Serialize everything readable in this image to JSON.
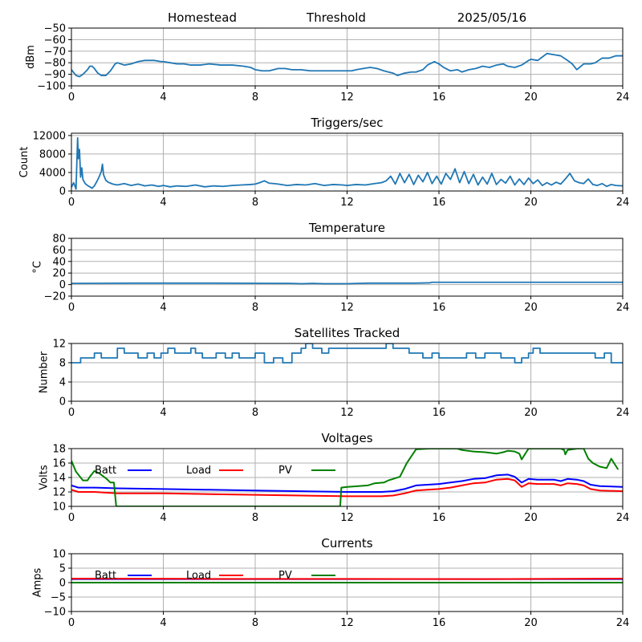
{
  "header": {
    "station": "Homestead",
    "mode": "Threshold",
    "date": "2025/05/16"
  },
  "colors": {
    "blue": "#1f77b4",
    "batt": "#0000ff",
    "load": "#ff0000",
    "pv": "#008000",
    "grid": "#b0b0b0"
  },
  "chart_data": [
    {
      "type": "line",
      "id": "signal",
      "title": "",
      "xlabel": "",
      "ylabel": "dBm",
      "xlim": [
        0,
        24
      ],
      "ylim": [
        -100,
        -50
      ],
      "xticks": [
        0,
        4,
        8,
        12,
        16,
        20,
        24
      ],
      "yticks": [
        -100,
        -90,
        -80,
        -70,
        -60,
        -50
      ],
      "grid": true,
      "series": [
        {
          "color": "#1f77b4",
          "x": [
            0,
            0.2,
            0.35,
            0.5,
            0.7,
            0.8,
            0.9,
            1.0,
            1.15,
            1.3,
            1.5,
            1.7,
            1.8,
            1.9,
            2.0,
            2.3,
            2.6,
            2.9,
            3.2,
            3.6,
            3.9,
            4.0,
            4.3,
            4.6,
            4.9,
            5.2,
            5.6,
            6.0,
            6.5,
            7.0,
            7.5,
            7.8,
            8.0,
            8.3,
            8.6,
            8.8,
            9.0,
            9.3,
            9.6,
            10.0,
            10.4,
            10.8,
            11.2,
            11.6,
            12.0,
            12.2,
            12.4,
            12.7,
            13.0,
            13.3,
            13.6,
            13.8,
            14.0,
            14.2,
            14.5,
            14.8,
            15.0,
            15.3,
            15.5,
            15.8,
            16.0,
            16.2,
            16.5,
            16.8,
            17.0,
            17.3,
            17.6,
            17.9,
            18.2,
            18.5,
            18.8,
            19.0,
            19.3,
            19.6,
            19.9,
            20.0,
            20.3,
            20.5,
            20.7,
            21.0,
            21.3,
            21.6,
            21.8,
            22.0,
            22.3,
            22.6,
            22.8,
            23.1,
            23.4,
            23.7,
            24.0
          ],
          "y": [
            -86,
            -91,
            -92,
            -90,
            -86,
            -83,
            -83,
            -85,
            -89,
            -91,
            -91,
            -87,
            -84,
            -81,
            -80,
            -82,
            -81,
            -79,
            -78,
            -78,
            -79,
            -79,
            -80,
            -81,
            -81,
            -82,
            -82,
            -81,
            -82,
            -82,
            -83,
            -84,
            -86,
            -87,
            -87,
            -86,
            -85,
            -85,
            -86,
            -86,
            -87,
            -87,
            -87,
            -87,
            -87,
            -87,
            -86,
            -85,
            -84,
            -85,
            -87,
            -88,
            -89,
            -91,
            -89,
            -88,
            -88,
            -86,
            -82,
            -79,
            -81,
            -84,
            -87,
            -86,
            -88,
            -86,
            -85,
            -83,
            -84,
            -82,
            -81,
            -83,
            -84,
            -82,
            -78,
            -77,
            -78,
            -75,
            -72,
            -73,
            -74,
            -78,
            -81,
            -86,
            -81,
            -81,
            -80,
            -76,
            -76,
            -74,
            -74
          ]
        }
      ]
    },
    {
      "type": "line",
      "id": "triggers",
      "title": "Triggers/sec",
      "xlabel": "",
      "ylabel": "Count",
      "xlim": [
        0,
        24
      ],
      "ylim": [
        0,
        12500
      ],
      "xticks": [
        0,
        4,
        8,
        12,
        16,
        20,
        24
      ],
      "yticks": [
        0,
        4000,
        8000,
        12000
      ],
      "grid": true,
      "series": [
        {
          "color": "#1f77b4",
          "x": [
            0,
            0.1,
            0.2,
            0.27,
            0.3,
            0.35,
            0.4,
            0.45,
            0.5,
            0.6,
            0.7,
            0.8,
            0.9,
            1.0,
            1.1,
            1.2,
            1.3,
            1.35,
            1.4,
            1.5,
            1.6,
            1.8,
            2.0,
            2.3,
            2.6,
            2.9,
            3.2,
            3.5,
            3.8,
            4.0,
            4.3,
            4.6,
            5.0,
            5.4,
            5.8,
            6.2,
            6.6,
            7.0,
            7.4,
            7.8,
            8.0,
            8.2,
            8.4,
            8.6,
            8.8,
            9.0,
            9.4,
            9.8,
            10.2,
            10.6,
            11.0,
            11.4,
            11.8,
            12.0,
            12.4,
            12.8,
            13.2,
            13.5,
            13.7,
            13.9,
            14.1,
            14.3,
            14.5,
            14.7,
            14.9,
            15.1,
            15.3,
            15.5,
            15.7,
            15.9,
            16.1,
            16.3,
            16.5,
            16.7,
            16.9,
            17.1,
            17.3,
            17.5,
            17.7,
            17.9,
            18.1,
            18.3,
            18.5,
            18.7,
            18.9,
            19.1,
            19.3,
            19.5,
            19.7,
            19.9,
            20.1,
            20.3,
            20.5,
            20.7,
            20.9,
            21.1,
            21.3,
            21.5,
            21.7,
            21.9,
            22.1,
            22.3,
            22.5,
            22.7,
            22.9,
            23.1,
            23.3,
            23.5,
            23.7,
            24.0
          ],
          "y": [
            800,
            1800,
            400,
            11500,
            7000,
            9000,
            3000,
            5000,
            2500,
            1600,
            1200,
            900,
            600,
            1100,
            2000,
            3000,
            4200,
            5800,
            3500,
            2300,
            1900,
            1500,
            1300,
            1600,
            1200,
            1500,
            1100,
            1300,
            1000,
            1200,
            900,
            1100,
            1000,
            1300,
            900,
            1100,
            1000,
            1200,
            1300,
            1400,
            1500,
            1800,
            2200,
            1700,
            1600,
            1500,
            1200,
            1400,
            1300,
            1600,
            1200,
            1400,
            1300,
            1200,
            1400,
            1300,
            1600,
            1800,
            2200,
            3200,
            1500,
            3800,
            1800,
            3600,
            1400,
            3400,
            2000,
            4000,
            1600,
            3200,
            1500,
            3800,
            2500,
            4800,
            1800,
            4200,
            1600,
            3600,
            1300,
            3000,
            1500,
            3800,
            1400,
            2500,
            1700,
            3200,
            1300,
            2600,
            1400,
            2800,
            1600,
            2400,
            1200,
            1800,
            1300,
            1900,
            1500,
            2600,
            3800,
            2200,
            1800,
            1600,
            2600,
            1400,
            1200,
            1600,
            1000,
            1400,
            1200,
            1100
          ]
        }
      ]
    },
    {
      "type": "line",
      "id": "temperature",
      "title": "Temperature",
      "xlabel": "",
      "ylabel": "°C",
      "xlim": [
        0,
        24
      ],
      "ylim": [
        -20,
        80
      ],
      "xticks": [
        0,
        4,
        8,
        12,
        16,
        20,
        24
      ],
      "yticks": [
        -20,
        0,
        20,
        40,
        60,
        80
      ],
      "grid": true,
      "series": [
        {
          "color": "#1f77b4",
          "x": [
            0,
            3,
            6,
            9,
            9.5,
            10,
            10.5,
            11,
            11.5,
            12,
            12.5,
            13,
            14,
            15,
            15.6,
            15.7,
            17,
            18,
            19,
            20,
            21,
            22,
            23,
            24
          ],
          "y": [
            2,
            2.5,
            2.5,
            2,
            2,
            1.5,
            2,
            1.5,
            1.5,
            1.5,
            2,
            2.5,
            2.5,
            2.5,
            3,
            4,
            4,
            4,
            4,
            4,
            4,
            4,
            4,
            4
          ]
        }
      ]
    },
    {
      "type": "line",
      "id": "satellites",
      "title": "Satellites Tracked",
      "xlabel": "",
      "ylabel": "Number",
      "xlim": [
        0,
        24
      ],
      "ylim": [
        0,
        12
      ],
      "xticks": [
        0,
        4,
        8,
        12,
        16,
        20,
        24
      ],
      "yticks": [
        0,
        4,
        8,
        12
      ],
      "grid": true,
      "series": [
        {
          "color": "#1f77b4",
          "step": true,
          "x": [
            0,
            0.4,
            0.8,
            1.0,
            1.3,
            1.7,
            2.0,
            2.3,
            2.6,
            2.9,
            3.3,
            3.6,
            3.9,
            4.2,
            4.5,
            4.9,
            5.2,
            5.4,
            5.7,
            6.0,
            6.3,
            6.7,
            7.0,
            7.3,
            7.6,
            8.0,
            8.4,
            8.8,
            9.2,
            9.6,
            10.0,
            10.2,
            10.5,
            10.9,
            11.2,
            11.5,
            12.0,
            12.5,
            13.0,
            13.4,
            13.7,
            14.0,
            14.3,
            14.7,
            15.0,
            15.3,
            15.7,
            16.0,
            16.4,
            16.8,
            17.2,
            17.6,
            18.0,
            18.4,
            18.7,
            19.0,
            19.3,
            19.6,
            19.9,
            20.1,
            20.4,
            20.8,
            21.2,
            21.6,
            22.0,
            22.4,
            22.8,
            23.2,
            23.5,
            24.0
          ],
          "y": [
            8,
            9,
            9,
            10,
            9,
            9,
            11,
            10,
            10,
            9,
            10,
            9,
            10,
            11,
            10,
            10,
            11,
            10,
            9,
            9,
            10,
            9,
            10,
            9,
            9,
            10,
            8,
            9,
            8,
            10,
            11,
            12,
            11,
            10,
            11,
            11,
            11,
            11,
            11,
            11,
            12,
            11,
            11,
            10,
            10,
            9,
            10,
            9,
            9,
            9,
            10,
            9,
            10,
            10,
            9,
            9,
            8,
            9,
            10,
            11,
            10,
            10,
            10,
            10,
            10,
            10,
            9,
            10,
            8,
            8
          ]
        }
      ]
    },
    {
      "type": "line",
      "id": "voltages",
      "title": "Voltages",
      "xlabel": "",
      "ylabel": "Volts",
      "xlim": [
        0,
        24
      ],
      "ylim": [
        10,
        18
      ],
      "xticks": [
        0,
        4,
        8,
        12,
        16,
        20,
        24
      ],
      "yticks": [
        10,
        12,
        14,
        16,
        18
      ],
      "grid": true,
      "legend": "top-left inline",
      "series": [
        {
          "name": "Batt",
          "color": "#0000ff",
          "x": [
            0,
            0.3,
            1.0,
            2.0,
            4.0,
            6.0,
            8.0,
            10.0,
            12.0,
            13.5,
            14.0,
            14.5,
            15.0,
            15.5,
            16.0,
            16.5,
            17.0,
            17.5,
            18.0,
            18.5,
            19.0,
            19.3,
            19.6,
            19.9,
            20.3,
            21.0,
            21.3,
            21.6,
            22.0,
            22.3,
            22.6,
            23.0,
            24.0
          ],
          "y": [
            12.9,
            12.6,
            12.6,
            12.5,
            12.4,
            12.3,
            12.2,
            12.1,
            12.0,
            12.0,
            12.1,
            12.4,
            12.9,
            13.0,
            13.1,
            13.3,
            13.5,
            13.8,
            13.9,
            14.3,
            14.4,
            14.1,
            13.3,
            13.8,
            13.7,
            13.7,
            13.5,
            13.8,
            13.7,
            13.5,
            13.0,
            12.8,
            12.7
          ]
        },
        {
          "name": "Load",
          "color": "#ff0000",
          "x": [
            0,
            0.3,
            1.0,
            2.0,
            4.0,
            6.0,
            8.0,
            10.0,
            12.0,
            13.5,
            14.0,
            14.5,
            15.0,
            15.5,
            16.0,
            16.5,
            17.0,
            17.5,
            18.0,
            18.5,
            19.0,
            19.3,
            19.6,
            19.9,
            20.3,
            21.0,
            21.3,
            21.6,
            22.0,
            22.3,
            22.6,
            23.0,
            24.0
          ],
          "y": [
            12.3,
            12.0,
            12.0,
            11.8,
            11.8,
            11.7,
            11.6,
            11.5,
            11.4,
            11.4,
            11.5,
            11.8,
            12.2,
            12.3,
            12.4,
            12.6,
            12.9,
            13.2,
            13.3,
            13.7,
            13.8,
            13.6,
            12.7,
            13.2,
            13.1,
            13.1,
            12.9,
            13.2,
            13.1,
            12.9,
            12.4,
            12.2,
            12.1
          ]
        },
        {
          "name": "PV",
          "color": "#008000",
          "x": [
            0,
            0.2,
            0.5,
            0.7,
            0.8,
            1.0,
            1.2,
            1.5,
            1.7,
            1.85,
            1.95,
            11.7,
            11.75,
            12.0,
            12.5,
            12.9,
            13.2,
            13.6,
            13.8,
            14.0,
            14.3,
            14.6,
            15.0,
            15.6,
            16.0,
            16.5,
            16.8,
            17.0,
            17.5,
            18.0,
            18.5,
            18.8,
            19.0,
            19.3,
            19.5,
            19.6,
            19.7,
            19.9,
            20.0,
            20.5,
            21.0,
            21.3,
            21.45,
            21.5,
            21.6,
            22.0,
            22.3,
            22.5,
            22.7,
            23.0,
            23.3,
            23.5,
            23.8
          ],
          "y": [
            16.3,
            14.8,
            13.6,
            13.6,
            14.1,
            14.9,
            14.6,
            13.9,
            13.3,
            13.3,
            10.0,
            10.0,
            12.6,
            12.7,
            12.8,
            12.9,
            13.2,
            13.3,
            13.6,
            13.8,
            14.1,
            16.0,
            17.9,
            18.0,
            18.0,
            18.0,
            18.0,
            17.8,
            17.6,
            17.5,
            17.3,
            17.5,
            17.7,
            17.6,
            17.3,
            16.5,
            17.0,
            18.0,
            18.0,
            18.0,
            18.0,
            18.0,
            17.8,
            17.2,
            17.8,
            18.0,
            18.0,
            16.6,
            16.0,
            15.5,
            15.3,
            16.6,
            15.1
          ]
        }
      ]
    },
    {
      "type": "line",
      "id": "currents",
      "title": "Currents",
      "xlabel": "",
      "ylabel": "Amps",
      "xlim": [
        0,
        24
      ],
      "ylim": [
        -10,
        10
      ],
      "xticks": [
        0,
        4,
        8,
        12,
        16,
        20,
        24
      ],
      "yticks": [
        -10,
        -5,
        0,
        5,
        10
      ],
      "grid": true,
      "legend": "top-left inline",
      "series": [
        {
          "name": "Batt",
          "color": "#0000ff",
          "x": [
            0,
            6,
            12,
            18,
            24
          ],
          "y": [
            1.2,
            1.2,
            1.2,
            1.2,
            1.2
          ]
        },
        {
          "name": "Load",
          "color": "#ff0000",
          "x": [
            0,
            6,
            12,
            18,
            24
          ],
          "y": [
            1.4,
            1.3,
            1.3,
            1.2,
            1.4
          ]
        },
        {
          "name": "PV",
          "color": "#008000",
          "x": [
            0,
            6,
            12,
            18,
            24
          ],
          "y": [
            0,
            0,
            0,
            0,
            0
          ]
        }
      ]
    }
  ]
}
